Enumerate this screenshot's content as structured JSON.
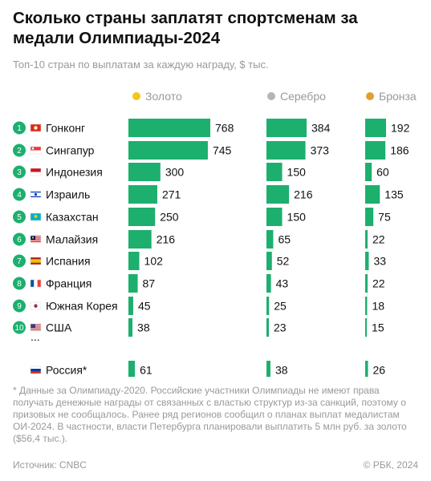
{
  "title": "Сколько страны заплатят спортсменам за медали Олимпиады-2024",
  "subtitle": "Топ-10 стран по выплатам за каждую награду, $ тыс.",
  "legend": [
    {
      "label": "Золото",
      "color": "#F5C518"
    },
    {
      "label": "Серебро",
      "color": "#B5B5B5"
    },
    {
      "label": "Бронза",
      "color": "#E0A030"
    }
  ],
  "ellipsis": "...",
  "note": "* Данные за Олимпиаду-2020. Российские участники Олимпиады не имеют права получать денежные награды от связанных с властью структур из-за санкций, поэтому о призовых не сообщалось. Ранее ряд регионов сообщил о планах выплат медалистам ОИ-2024. В частности, власти Петербурга планировали выплатить 5 млн руб. за золото ($56,4 тыс.).",
  "source": "Источник: CNBC",
  "copyright": "© РБК, 2024",
  "colors": {
    "bar": "#1DAF6E",
    "rank_badge": "#1DAF6E"
  },
  "chart_data": {
    "type": "bar",
    "categories": [
      "Гонконг",
      "Сингапур",
      "Индонезия",
      "Израиль",
      "Казахстан",
      "Малайзия",
      "Испания",
      "Франция",
      "Южная Корея",
      "США",
      "Россия*"
    ],
    "ranks": [
      "1",
      "2",
      "3",
      "4",
      "5",
      "6",
      "7",
      "8",
      "9",
      "10",
      ""
    ],
    "flag_icons": [
      "hong-kong-flag-icon",
      "singapore-flag-icon",
      "indonesia-flag-icon",
      "israel-flag-icon",
      "kazakhstan-flag-icon",
      "malaysia-flag-icon",
      "spain-flag-icon",
      "france-flag-icon",
      "south-korea-flag-icon",
      "usa-flag-icon",
      "russia-flag-icon"
    ],
    "series": [
      {
        "name": "Золото",
        "values": [
          768,
          745,
          300,
          271,
          250,
          216,
          102,
          87,
          45,
          38,
          61
        ]
      },
      {
        "name": "Серебро",
        "values": [
          384,
          373,
          150,
          216,
          150,
          65,
          52,
          43,
          25,
          23,
          38
        ]
      },
      {
        "name": "Бронза",
        "values": [
          192,
          186,
          60,
          135,
          75,
          22,
          33,
          22,
          18,
          15,
          26
        ]
      }
    ],
    "xlabel": "",
    "ylabel": ""
  }
}
